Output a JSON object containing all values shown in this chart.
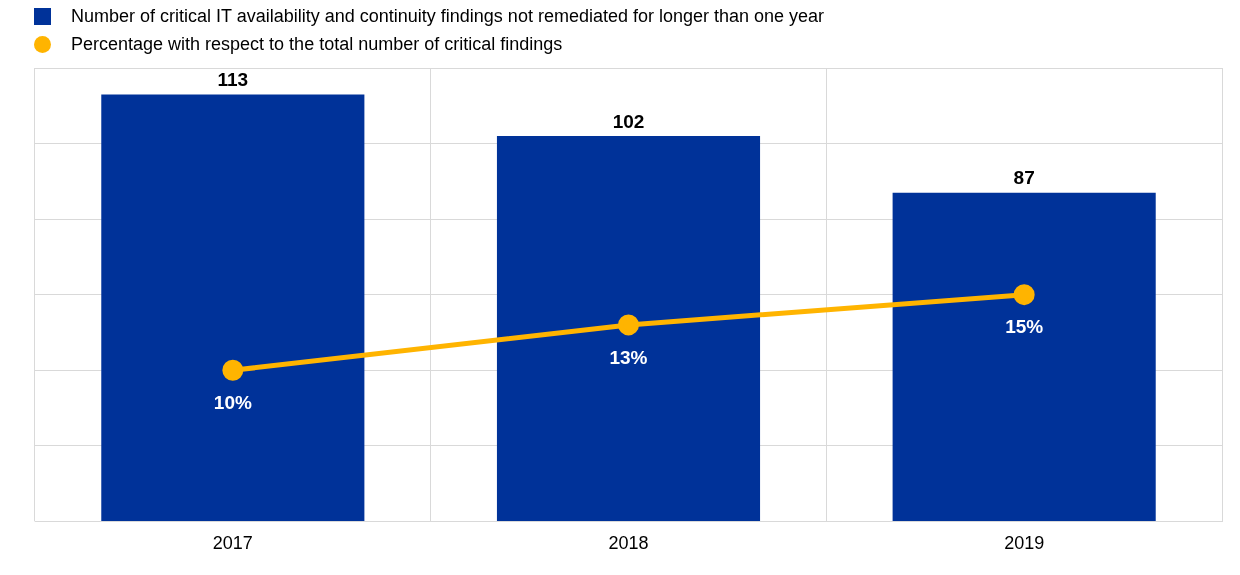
{
  "chart_data": {
    "type": "bar",
    "categories": [
      "2017",
      "2018",
      "2019"
    ],
    "series": [
      {
        "name": "Number of critical IT availability and continuity findings not remediated for longer than one year",
        "color": "#003299",
        "values": [
          113,
          102,
          87
        ],
        "value_labels": [
          "113",
          "102",
          "87"
        ]
      },
      {
        "name": "Percentage with respect to the total number of critical findings",
        "type": "line",
        "axis": "y2",
        "color": "#ffb400",
        "values": [
          10,
          13,
          15
        ],
        "value_labels": [
          "10%",
          "13%",
          "15%"
        ]
      }
    ],
    "ylim": [
      0,
      120
    ],
    "yticks": [
      {
        "value": 0,
        "label": null
      },
      {
        "value": 20,
        "label": null
      },
      {
        "value": 40,
        "label": null
      },
      {
        "value": 60,
        "label": null
      },
      {
        "value": 80,
        "label": null
      },
      {
        "value": 100,
        "label": null
      },
      {
        "value": 120,
        "label": null
      }
    ],
    "y2lim": [
      0,
      30
    ],
    "grid": true,
    "legend": "top left",
    "marker": "circle",
    "tick_labels": "x"
  }
}
